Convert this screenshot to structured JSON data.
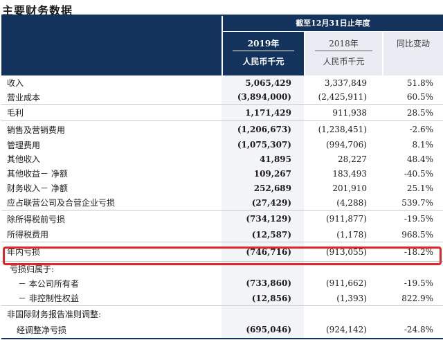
{
  "title": "主要财务数据",
  "header": {
    "period": "截至12月31日止年度",
    "col2019_year": "2019年",
    "col2019_currency": "人民币千元",
    "col2018_year": "2018年",
    "col2018_currency": "人民币千元",
    "change_label": "同比变动"
  },
  "rows": [
    {
      "label": "收入",
      "v2019": "5,065,429",
      "v2018": "3,337,849",
      "change": "51.8%"
    },
    {
      "label": "营业成本",
      "v2019": "(3,894,000)",
      "v2018": "(2,425,911)",
      "change": "60.5%"
    },
    {
      "label": "毛利",
      "v2019": "1,171,429",
      "v2018": "911,938",
      "change": "28.5%"
    },
    {
      "label": "销售及营销费用",
      "v2019": "(1,206,673)",
      "v2018": "(1,238,451)",
      "change": "-2.6%"
    },
    {
      "label": "管理费用",
      "v2019": "(1,075,307)",
      "v2018": "(994,706)",
      "change": "8.1%"
    },
    {
      "label": "其他收入",
      "v2019": "41,895",
      "v2018": "28,227",
      "change": "48.4%"
    },
    {
      "label": "其他收益－ 净额",
      "v2019": "109,267",
      "v2018": "183,493",
      "change": "-40.5%"
    },
    {
      "label": "财务收入－ 净额",
      "v2019": "252,689",
      "v2018": "201,910",
      "change": "25.1%"
    },
    {
      "label": "应占联营公司及合营企业亏损",
      "v2019": "(27,429)",
      "v2018": "(4,288)",
      "change": "539.7%"
    },
    {
      "label": "除所得税前亏损",
      "v2019": "(734,129)",
      "v2018": "(911,877)",
      "change": "-19.5%"
    },
    {
      "label": "所得税费用",
      "v2019": "(12,587)",
      "v2018": "(1,178)",
      "change": "968.5%"
    },
    {
      "label": "年内亏损",
      "v2019": "(746,716)",
      "v2018": "(913,055)",
      "change": "-18.2%"
    },
    {
      "label": "亏损归属于:",
      "v2019": "",
      "v2018": "",
      "change": ""
    },
    {
      "label": "－ 本公司所有者",
      "v2019": "(733,860)",
      "v2018": "(911,662)",
      "change": "-19.5%"
    },
    {
      "label": "－ 非控制性权益",
      "v2019": "(12,856)",
      "v2018": "(1,393)",
      "change": "822.9%"
    },
    {
      "label": "非国际财务报告准则调整:",
      "v2019": "",
      "v2018": "",
      "change": ""
    },
    {
      "label": "经调整净亏损",
      "v2019": "(695,046)",
      "v2018": "(924,142)",
      "change": "-24.8%"
    }
  ],
  "colors": {
    "header_navy": "#13335c",
    "header_light": "#e9ecf2",
    "highlight_red": "#e0262a"
  }
}
